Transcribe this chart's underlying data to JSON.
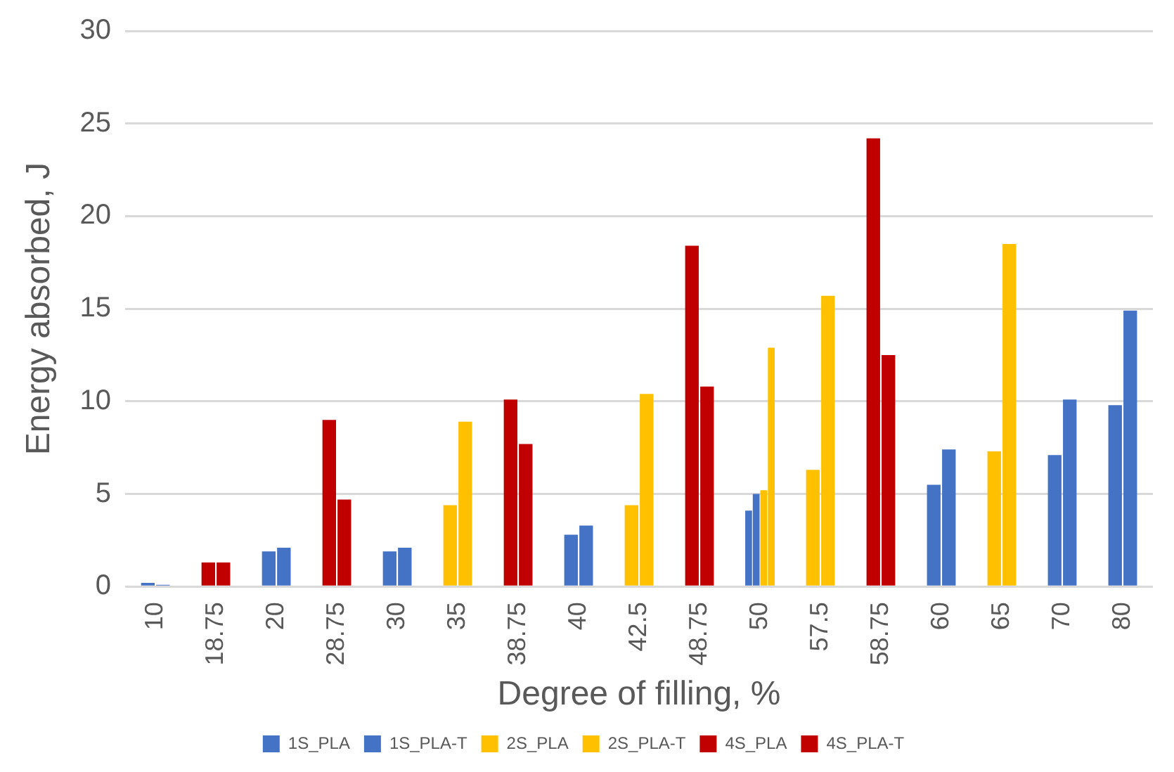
{
  "chart_data": {
    "type": "bar",
    "xlabel": "Degree of filling, %",
    "ylabel": "Energy absorbed, J",
    "categories": [
      "10",
      "18.75",
      "20",
      "28.75",
      "30",
      "35",
      "38.75",
      "40",
      "42.5",
      "48.75",
      "50",
      "57.5",
      "58.75",
      "60",
      "65",
      "70",
      "80"
    ],
    "series": [
      {
        "name": "1S_PLA",
        "color": "#4472c4",
        "values": [
          0.2,
          null,
          1.9,
          null,
          1.9,
          null,
          null,
          2.8,
          null,
          null,
          4.1,
          null,
          null,
          5.5,
          null,
          7.1,
          9.8
        ]
      },
      {
        "name": "1S_PLA-T",
        "color": "#4472c4",
        "values": [
          0.1,
          null,
          2.1,
          null,
          2.1,
          null,
          null,
          3.3,
          null,
          null,
          5.0,
          null,
          null,
          7.4,
          null,
          10.1,
          14.9
        ]
      },
      {
        "name": "2S_PLA",
        "color": "#ffc000",
        "values": [
          null,
          null,
          null,
          null,
          null,
          4.4,
          null,
          null,
          4.4,
          null,
          5.2,
          6.3,
          null,
          null,
          7.3,
          null,
          null
        ]
      },
      {
        "name": "2S_PLA-T",
        "color": "#ffc000",
        "values": [
          null,
          null,
          null,
          null,
          null,
          8.9,
          null,
          null,
          10.4,
          null,
          12.9,
          15.7,
          null,
          null,
          18.5,
          null,
          null
        ]
      },
      {
        "name": "4S_PLA",
        "color": "#c00000",
        "values": [
          null,
          1.3,
          null,
          9.0,
          null,
          null,
          10.1,
          null,
          null,
          18.4,
          null,
          null,
          24.2,
          null,
          null,
          null,
          null
        ]
      },
      {
        "name": "4S_PLA-T",
        "color": "#c00000",
        "values": [
          null,
          1.3,
          null,
          4.7,
          null,
          null,
          7.7,
          null,
          null,
          10.8,
          null,
          null,
          12.5,
          null,
          null,
          null,
          null
        ]
      }
    ],
    "ylim": [
      0,
      30
    ],
    "yticks": [
      0,
      5,
      10,
      15,
      20,
      25,
      30
    ],
    "grid": "y",
    "legend": "bottom"
  }
}
